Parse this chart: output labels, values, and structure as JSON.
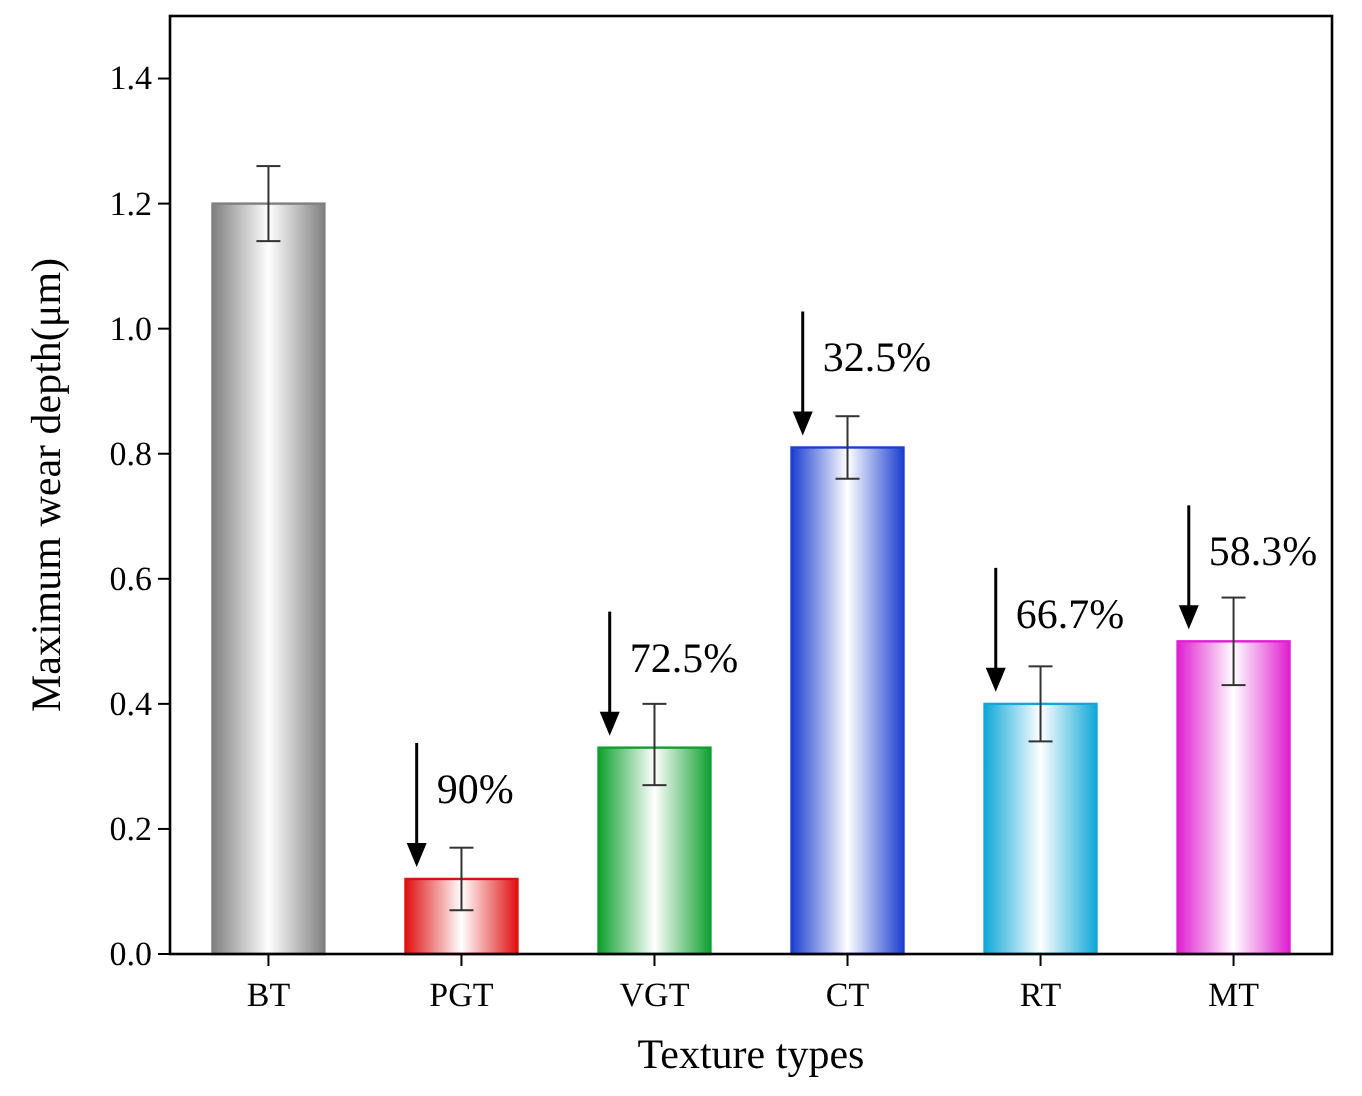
{
  "chart_data": {
    "type": "bar",
    "xlabel": "Texture types",
    "ylabel": "Maximum wear depth(μm)",
    "categories": [
      "BT",
      "PGT",
      "VGT",
      "CT",
      "RT",
      "MT"
    ],
    "values": [
      1.2,
      0.12,
      0.33,
      0.81,
      0.4,
      0.5
    ],
    "errors": [
      [
        1.14,
        1.26
      ],
      [
        0.07,
        0.17
      ],
      [
        0.27,
        0.4
      ],
      [
        0.76,
        0.86
      ],
      [
        0.34,
        0.46
      ],
      [
        0.43,
        0.57
      ]
    ],
    "colors": [
      "#808080",
      "#e01010",
      "#10a030",
      "#1c3fd0",
      "#10a8d8",
      "#e020d0"
    ],
    "ylim": [
      0,
      1.5
    ],
    "yticks": [
      {
        "value": 0,
        "label": "0.0"
      },
      {
        "value": 0.2,
        "label": "0.2"
      },
      {
        "value": 0.4,
        "label": "0.4"
      },
      {
        "value": 0.6,
        "label": "0.6"
      },
      {
        "value": 0.8,
        "label": "0.8"
      },
      {
        "value": 1,
        "label": "1.0"
      },
      {
        "value": 1.2,
        "label": "1.2"
      },
      {
        "value": 1.4,
        "label": "1.4"
      }
    ],
    "annotations": [
      {
        "text": "90%",
        "x": "PGT",
        "y": 0.12
      },
      {
        "text": "72.5%",
        "x": "VGT",
        "y": 0.33
      },
      {
        "text": "32.5%",
        "x": "CT",
        "y": 0.81
      },
      {
        "text": "66.7%",
        "x": "RT",
        "y": 0.4
      },
      {
        "text": "58.3%",
        "x": "MT",
        "y": 0.5
      }
    ]
  }
}
